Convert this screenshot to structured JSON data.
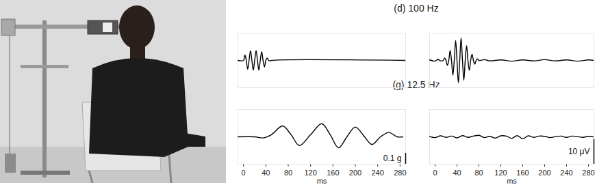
{
  "row_titles": [
    "(d) 100 Hz",
    "(g) 12.5 Hz"
  ],
  "chart_data": [
    {
      "type": "line",
      "color": "#000000",
      "xlim": [
        -10,
        290
      ],
      "ylim": [
        -0.25,
        0.25
      ],
      "yticks": [],
      "tick_labels": false,
      "x": [
        -10,
        0,
        2.5,
        5,
        7.5,
        10,
        12.5,
        15,
        17.5,
        20,
        22.5,
        25,
        27.5,
        30,
        32.5,
        35,
        37.5,
        40,
        42.5,
        45,
        47.5,
        50,
        290
      ],
      "values": [
        0,
        0,
        0.05,
        0,
        -0.08,
        0,
        0.09,
        0,
        -0.09,
        0,
        0.09,
        0,
        -0.09,
        0,
        0.08,
        0,
        -0.06,
        0,
        0.02,
        0,
        -0.005,
        0,
        0
      ]
    },
    {
      "type": "line",
      "color": "#000000",
      "xlim": [
        -10,
        290
      ],
      "ylim": [
        -11,
        11
      ],
      "yticks": [],
      "tick_labels": false,
      "x": [
        -10,
        0,
        5,
        10,
        15,
        17.5,
        20,
        22.5,
        25,
        27.5,
        30,
        32.5,
        35,
        37.5,
        40,
        42.5,
        45,
        47.5,
        50,
        52.5,
        55,
        57.5,
        60,
        62.5,
        65,
        67.5,
        70,
        72.5,
        75,
        77.5,
        80,
        90,
        100,
        120,
        140,
        160,
        180,
        200,
        220,
        240,
        260,
        280,
        290
      ],
      "values": [
        0.2,
        -0.3,
        0.4,
        -0.2,
        0,
        1,
        0,
        -2,
        0,
        4,
        0,
        -6,
        0,
        8,
        0,
        -9,
        0,
        9,
        0,
        -8,
        0,
        6,
        0,
        -4,
        0,
        2.5,
        0,
        -1.5,
        0,
        0.6,
        0,
        0.3,
        -0.2,
        0.2,
        -0.3,
        0.2,
        -0.2,
        0.3,
        -0.2,
        0.2,
        -0.3,
        0.2,
        0
      ]
    },
    {
      "type": "line",
      "color": "#000000",
      "xlim": [
        -10,
        290
      ],
      "xticks": [
        0,
        40,
        80,
        120,
        160,
        200,
        240,
        280
      ],
      "xlabel": "ms",
      "ylim": [
        -0.25,
        0.25
      ],
      "yticks": [],
      "tick_labels": "x",
      "scale_bar": {
        "value": 0.1,
        "label": "0.1 g"
      },
      "x": [
        -10,
        20,
        35,
        50,
        70,
        85,
        100,
        120,
        140,
        155,
        170,
        185,
        200,
        215,
        230,
        245,
        260,
        275,
        285
      ],
      "values": [
        0,
        0,
        -0.01,
        0.02,
        0.1,
        0.02,
        -0.08,
        0.02,
        0.12,
        0.02,
        -0.1,
        0,
        0.09,
        0.01,
        -0.07,
        0,
        0.04,
        0,
        0
      ]
    },
    {
      "type": "line",
      "color": "#000000",
      "xlim": [
        -10,
        290
      ],
      "xticks": [
        0,
        40,
        80,
        120,
        160,
        200,
        240,
        280
      ],
      "xlabel": "ms",
      "ylim": [
        -11,
        11
      ],
      "yticks": [],
      "tick_labels": "x",
      "scale_bar": {
        "value": 10,
        "label": "10 μV"
      },
      "x": [
        -10,
        0,
        10,
        20,
        30,
        40,
        50,
        60,
        70,
        80,
        90,
        100,
        110,
        120,
        130,
        140,
        150,
        160,
        170,
        180,
        190,
        200,
        210,
        220,
        230,
        240,
        250,
        260,
        270,
        280,
        290
      ],
      "values": [
        0.1,
        -0.3,
        0.4,
        -0.2,
        0.3,
        -0.4,
        0.5,
        -0.2,
        0.3,
        0.6,
        -0.3,
        0.2,
        -0.5,
        0.4,
        0.3,
        -0.6,
        0.5,
        -0.8,
        0.4,
        -0.2,
        0.3,
        0.2,
        -0.3,
        0.1,
        0.3,
        -0.2,
        0.3,
        0.1,
        -0.2,
        0.2,
        0
      ]
    }
  ]
}
